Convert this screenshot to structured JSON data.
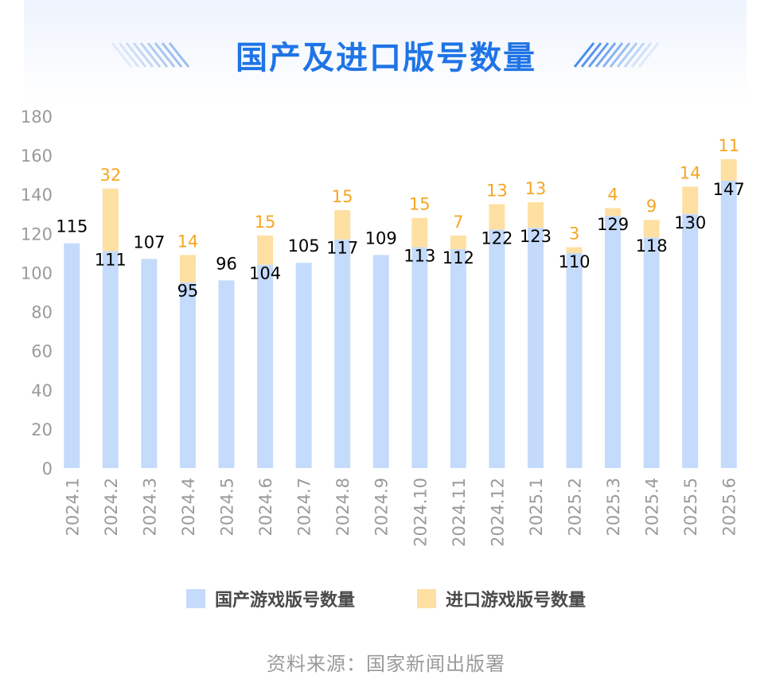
{
  "chart_data": {
    "type": "bar",
    "stacked": true,
    "title": "国产及进口版号数量",
    "categories": [
      "2024.1",
      "2024.2",
      "2024.3",
      "2024.4",
      "2024.5",
      "2024.6",
      "2024.7",
      "2024.8",
      "2024.9",
      "2024.10",
      "2024.11",
      "2024.12",
      "2025.1",
      "2025.2",
      "2025.3",
      "2025.4",
      "2025.5",
      "2025.6"
    ],
    "series": [
      {
        "name": "国产游戏版号数量",
        "color": "#c5dbfb",
        "label_color": "#000000",
        "values": [
          115,
          111,
          107,
          95,
          96,
          104,
          105,
          117,
          109,
          113,
          112,
          122,
          123,
          110,
          129,
          118,
          130,
          147
        ]
      },
      {
        "name": "进口游戏版号数量",
        "color": "#ffe0a3",
        "label_color": "#f5a623",
        "values": [
          0,
          32,
          0,
          14,
          0,
          15,
          0,
          15,
          0,
          15,
          7,
          13,
          13,
          3,
          4,
          9,
          14,
          11
        ]
      }
    ],
    "ylim": [
      0,
      180
    ],
    "yticks": [
      0,
      20,
      40,
      60,
      80,
      100,
      120,
      140,
      160,
      180
    ],
    "grid": false,
    "legend_position": "bottom",
    "source": "资料来源：国家新闻出版署"
  }
}
